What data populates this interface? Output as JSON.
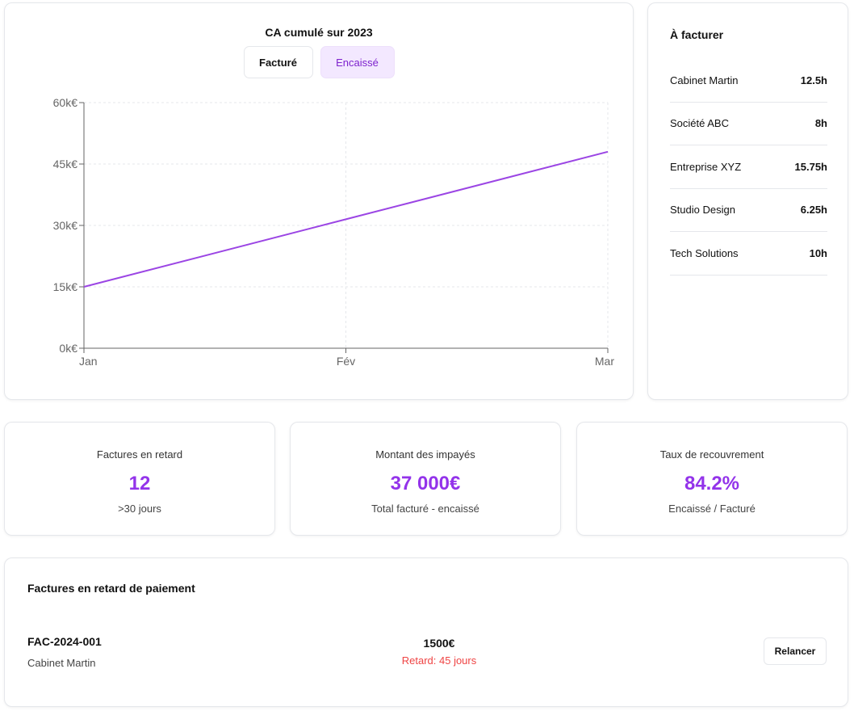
{
  "chart_card": {
    "toggle_facture": "Facturé",
    "toggle_encaisse": "Encaissé"
  },
  "chart_data": {
    "type": "line",
    "title": "CA cumulé sur 2023",
    "categories": [
      "Jan",
      "Fév",
      "Mar"
    ],
    "series": [
      {
        "values": [
          15000,
          31500,
          48000
        ],
        "color": "#9b45e4"
      }
    ],
    "ylim": [
      0,
      60000
    ],
    "yticks": [
      0,
      15000,
      30000,
      45000,
      60000
    ],
    "ytick_labels": [
      "0k€",
      "15k€",
      "30k€",
      "45k€",
      "60k€"
    ],
    "grid": true,
    "active_series_toggle": "Encaissé"
  },
  "billing": {
    "title": "À facturer",
    "items": [
      {
        "name": "Cabinet Martin",
        "hours": "12.5h"
      },
      {
        "name": "Société ABC",
        "hours": "8h"
      },
      {
        "name": "Entreprise XYZ",
        "hours": "15.75h"
      },
      {
        "name": "Studio Design",
        "hours": "6.25h"
      },
      {
        "name": "Tech Solutions",
        "hours": "10h"
      }
    ]
  },
  "stats": {
    "late": {
      "label": "Factures en retard",
      "value": "12",
      "sub": ">30 jours"
    },
    "unpaid": {
      "label": "Montant des impayés",
      "value": "37 000€",
      "sub": "Total facturé - encaissé"
    },
    "recovery": {
      "label": "Taux de recouvrement",
      "value": "84.2%",
      "sub": "Encaissé / Facturé"
    }
  },
  "overdue": {
    "title": "Factures en retard de paiement",
    "invoices": [
      {
        "number": "FAC-2024-001",
        "client": "Cabinet Martin",
        "amount": "1500€",
        "delay": "Retard: 45 jours",
        "action": "Relancer"
      }
    ]
  },
  "colors": {
    "accent": "#9333ea",
    "accent_bg": "#f3e8ff",
    "danger": "#ef4444",
    "line": "#9b45e4"
  }
}
